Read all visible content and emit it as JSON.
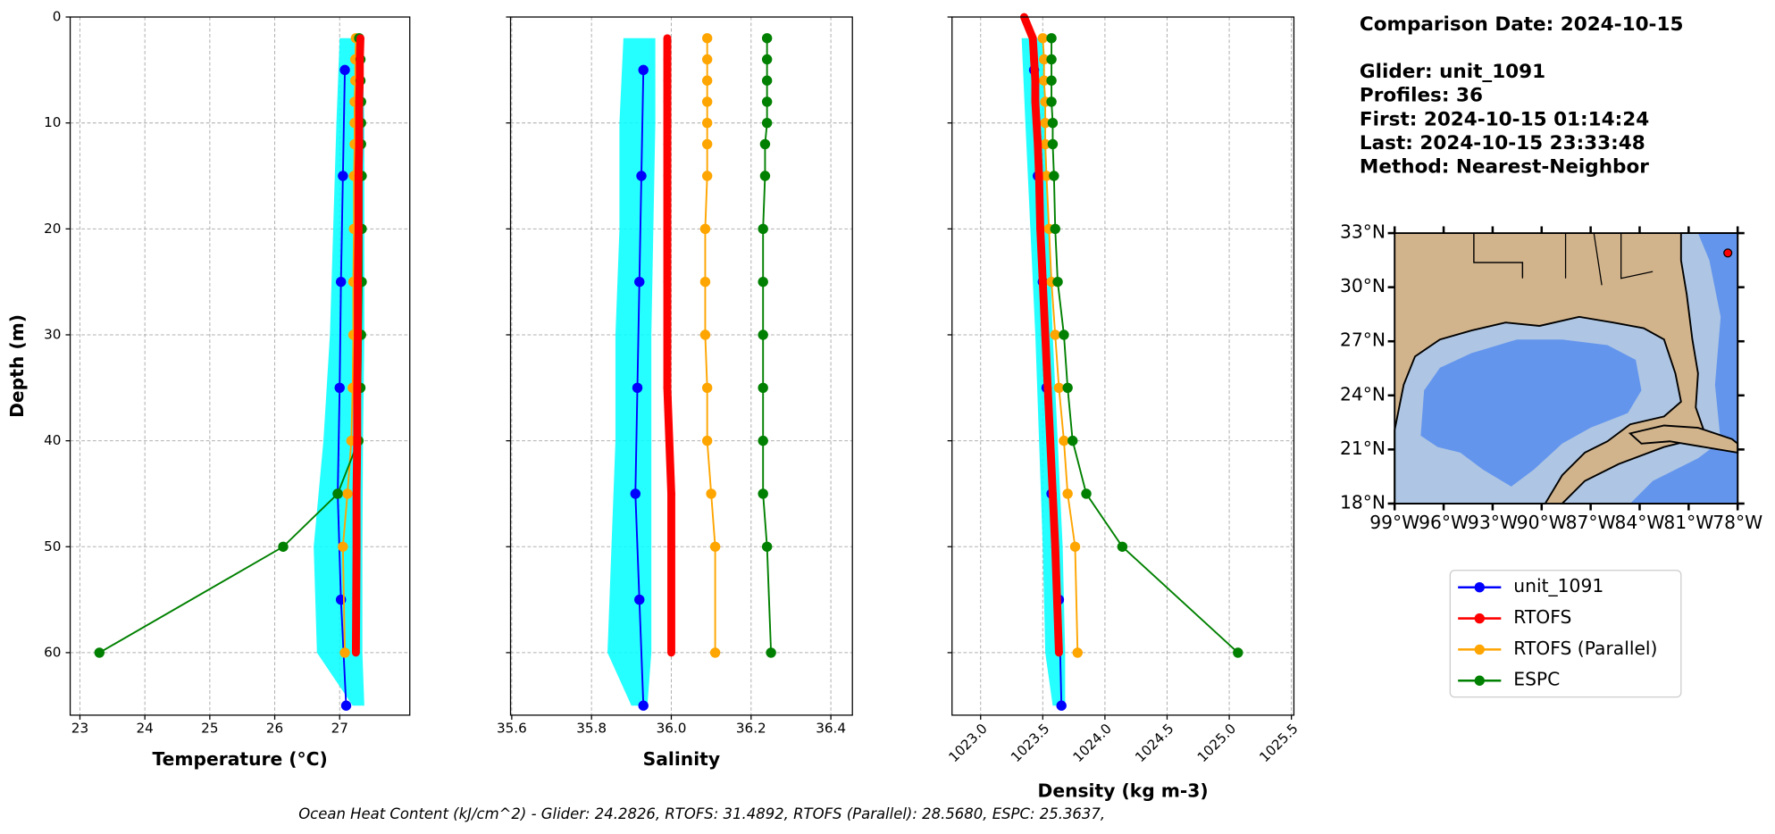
{
  "chart_data": [
    {
      "type": "line",
      "xlabel": "Temperature (°C)",
      "ylabel": "Depth (m)",
      "xlim": [
        22.85,
        28.08
      ],
      "xticks": [
        23,
        24,
        25,
        26,
        27
      ],
      "ylim": [
        65.9,
        0
      ],
      "yticks": [
        0,
        10,
        20,
        30,
        40,
        50,
        60
      ],
      "grid": true,
      "envelope": {
        "color": "#00ffff",
        "depth": [
          2,
          10,
          20,
          30,
          40,
          50,
          60,
          65
        ],
        "min": [
          27.0,
          26.95,
          26.9,
          26.85,
          26.75,
          26.6,
          26.65,
          27.2
        ],
        "max": [
          27.35,
          27.38,
          27.38,
          27.38,
          27.36,
          27.35,
          27.35,
          27.38
        ]
      },
      "series": [
        {
          "name": "unit_1091",
          "color": "#0000ff",
          "linewidth": 1.5,
          "depth": [
            5,
            15,
            25,
            35,
            45,
            55,
            65
          ],
          "values": [
            27.08,
            27.05,
            27.02,
            27.0,
            26.97,
            27.02,
            27.1
          ]
        },
        {
          "name": "RTOFS",
          "color": "#ff0000",
          "linewidth": 7,
          "depth": [
            2,
            4,
            6,
            8,
            10,
            12,
            15,
            20,
            25,
            30,
            35,
            40,
            45,
            50,
            60
          ],
          "values": [
            27.32,
            27.31,
            27.31,
            27.3,
            27.3,
            27.3,
            27.29,
            27.29,
            27.28,
            27.28,
            27.27,
            27.27,
            27.26,
            27.26,
            27.25
          ]
        },
        {
          "name": "RTOFS (Parallel)",
          "color": "#ffa500",
          "linewidth": 1.5,
          "depth": [
            2,
            4,
            6,
            8,
            10,
            12,
            15,
            20,
            25,
            30,
            35,
            40,
            45,
            50,
            60
          ],
          "values": [
            27.25,
            27.24,
            27.24,
            27.23,
            27.23,
            27.23,
            27.22,
            27.22,
            27.21,
            27.21,
            27.2,
            27.18,
            27.12,
            27.05,
            27.08
          ]
        },
        {
          "name": "ESPC",
          "color": "#008000",
          "linewidth": 1.5,
          "depth": [
            2,
            4,
            6,
            8,
            10,
            12,
            15,
            20,
            25,
            30,
            35,
            40,
            45,
            50,
            60
          ],
          "values": [
            27.3,
            27.32,
            27.32,
            27.33,
            27.33,
            27.33,
            27.34,
            27.34,
            27.34,
            27.33,
            27.32,
            27.29,
            26.97,
            26.13,
            23.3
          ]
        }
      ]
    },
    {
      "type": "line",
      "xlabel": "Salinity",
      "xlim": [
        35.597,
        36.454
      ],
      "xticks": [
        35.6,
        35.8,
        {
          "value": 36.0,
          "label": "36.0"
        },
        36.2,
        36.4
      ],
      "ylim": [
        65.9,
        0
      ],
      "yticks": [
        0,
        10,
        20,
        30,
        40,
        50,
        60
      ],
      "grid": true,
      "envelope": {
        "color": "#00ffff",
        "depth": [
          2,
          10,
          20,
          30,
          40,
          50,
          60,
          65
        ],
        "min": [
          35.88,
          35.87,
          35.87,
          35.86,
          35.86,
          35.85,
          35.84,
          35.9
        ],
        "max": [
          35.96,
          35.96,
          35.955,
          35.95,
          35.95,
          35.95,
          35.95,
          35.94
        ]
      },
      "series": [
        {
          "name": "unit_1091",
          "color": "#0000ff",
          "linewidth": 1.5,
          "depth": [
            5,
            15,
            25,
            35,
            45,
            55,
            65
          ],
          "values": [
            35.93,
            35.925,
            35.92,
            35.915,
            35.91,
            35.92,
            35.93
          ]
        },
        {
          "name": "RTOFS",
          "color": "#ff0000",
          "linewidth": 7,
          "depth": [
            2,
            4,
            6,
            8,
            10,
            12,
            15,
            20,
            25,
            30,
            35,
            40,
            45,
            50,
            60
          ],
          "values": [
            35.99,
            35.99,
            35.99,
            35.99,
            35.99,
            35.99,
            35.99,
            35.99,
            35.99,
            35.99,
            35.99,
            35.995,
            36.0,
            36.0,
            36.0
          ]
        },
        {
          "name": "RTOFS (Parallel)",
          "color": "#ffa500",
          "linewidth": 1.5,
          "depth": [
            2,
            4,
            6,
            8,
            10,
            12,
            15,
            20,
            25,
            30,
            35,
            40,
            45,
            50,
            60
          ],
          "values": [
            36.09,
            36.09,
            36.09,
            36.09,
            36.09,
            36.09,
            36.09,
            36.085,
            36.085,
            36.085,
            36.09,
            36.09,
            36.1,
            36.11,
            36.11
          ]
        },
        {
          "name": "ESPC",
          "color": "#008000",
          "linewidth": 1.5,
          "depth": [
            2,
            4,
            6,
            8,
            10,
            12,
            15,
            20,
            25,
            30,
            35,
            40,
            45,
            50,
            60
          ],
          "values": [
            36.24,
            36.24,
            36.24,
            36.24,
            36.24,
            36.235,
            36.235,
            36.23,
            36.23,
            36.23,
            36.23,
            36.23,
            36.23,
            36.24,
            36.25
          ]
        }
      ]
    },
    {
      "type": "line",
      "xlabel": "Density (kg m-3)",
      "xtick_rotation": 45,
      "xlim": [
        1022.77,
        1025.52
      ],
      "xticks": [
        {
          "value": 1023.0,
          "label": "1023.0"
        },
        1023.5,
        {
          "value": 1024.0,
          "label": "1024.0"
        },
        1024.5,
        {
          "value": 1025.0,
          "label": "1025.0"
        },
        1025.5
      ],
      "ylim": [
        65.9,
        0
      ],
      "yticks": [
        0,
        10,
        20,
        30,
        40,
        50,
        60
      ],
      "grid": true,
      "envelope": {
        "color": "#00ffff",
        "depth": [
          2,
          10,
          20,
          30,
          40,
          50,
          60,
          65
        ],
        "min": [
          1023.33,
          1023.36,
          1023.4,
          1023.44,
          1023.47,
          1023.5,
          1023.52,
          1023.58
        ],
        "max": [
          1023.5,
          1023.52,
          1023.55,
          1023.58,
          1023.62,
          1023.66,
          1023.68,
          1023.68
        ]
      },
      "series": [
        {
          "name": "unit_1091",
          "color": "#0000ff",
          "linewidth": 1.5,
          "depth": [
            5,
            15,
            25,
            35,
            45,
            55,
            65
          ],
          "values": [
            1023.43,
            1023.46,
            1023.5,
            1023.53,
            1023.57,
            1023.63,
            1023.65
          ]
        },
        {
          "name": "RTOFS",
          "color": "#ff0000",
          "linewidth": 7,
          "depth": [
            0,
            2,
            4,
            6,
            8,
            10,
            12,
            15,
            20,
            25,
            30,
            35,
            40,
            45,
            50,
            60
          ],
          "values": [
            1023.35,
            1023.42,
            1023.43,
            1023.44,
            1023.44,
            1023.45,
            1023.46,
            1023.47,
            1023.48,
            1023.5,
            1023.52,
            1023.54,
            1023.56,
            1023.58,
            1023.6,
            1023.63
          ]
        },
        {
          "name": "RTOFS (Parallel)",
          "color": "#ffa500",
          "linewidth": 1.5,
          "depth": [
            2,
            4,
            6,
            8,
            10,
            12,
            15,
            20,
            25,
            30,
            35,
            40,
            45,
            50,
            60
          ],
          "values": [
            1023.5,
            1023.51,
            1023.51,
            1023.52,
            1023.52,
            1023.52,
            1023.53,
            1023.55,
            1023.57,
            1023.6,
            1023.63,
            1023.67,
            1023.7,
            1023.76,
            1023.78
          ]
        },
        {
          "name": "ESPC",
          "color": "#008000",
          "linewidth": 1.5,
          "depth": [
            2,
            4,
            6,
            8,
            10,
            12,
            15,
            20,
            25,
            30,
            35,
            40,
            45,
            50,
            60
          ],
          "values": [
            1023.57,
            1023.57,
            1023.57,
            1023.57,
            1023.58,
            1023.58,
            1023.59,
            1023.6,
            1023.62,
            1023.67,
            1023.7,
            1023.74,
            1023.85,
            1024.14,
            1025.07
          ]
        }
      ]
    }
  ],
  "info": [
    "Comparison Date: 2024-10-15",
    "Glider: unit_1091",
    "Profiles: 36",
    "First: 2024-10-15 01:14:24",
    "Last: 2024-10-15 23:33:48",
    "Method: Nearest-Neighbor"
  ],
  "map": {
    "xlim": [
      -99,
      -78
    ],
    "ylim": [
      18,
      33
    ],
    "xticks": [
      {
        "value": -99,
        "label": "99°W"
      },
      {
        "value": -96,
        "label": "96°W"
      },
      {
        "value": -93,
        "label": "93°W"
      },
      {
        "value": -90,
        "label": "90°W"
      },
      {
        "value": -87,
        "label": "87°W"
      },
      {
        "value": -84,
        "label": "84°W"
      },
      {
        "value": -81,
        "label": "81°W"
      },
      {
        "value": -78,
        "label": "78°W"
      }
    ],
    "yticks": [
      {
        "value": 18,
        "label": "18°N"
      },
      {
        "value": 21,
        "label": "21°N"
      },
      {
        "value": 24,
        "label": "24°N"
      },
      {
        "value": 27,
        "label": "27°N"
      },
      {
        "value": 30,
        "label": "30°N"
      },
      {
        "value": 33,
        "label": "33°N"
      }
    ],
    "glider_location": {
      "lon": -78.6,
      "lat": 31.9,
      "color": "#ff0000"
    }
  },
  "footer": "Ocean Heat Content (kJ/cm^2) - Glider: 24.2826,  RTOFS: 31.4892,  RTOFS (Parallel): 28.5680,  ESPC: 25.3637,"
}
